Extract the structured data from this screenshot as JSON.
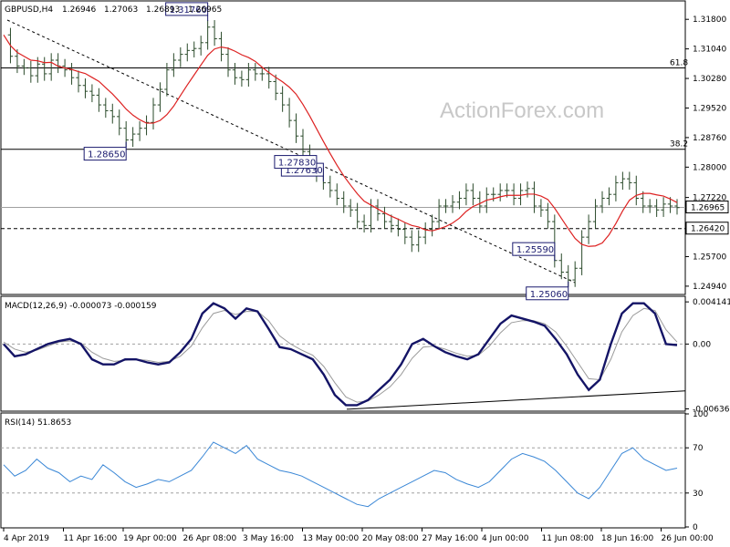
{
  "chart_data": [
    {
      "type": "candlestick",
      "title": "GBPUSD,H4",
      "ohlc": {
        "open": "1.26946",
        "high": "1.27063",
        "low": "1.26893",
        "close": "1.26965"
      },
      "watermark": "ActionForex.com",
      "ylim": [
        1.2475,
        1.3225
      ],
      "y_ticks": [
        "1.31800",
        "1.31040",
        "1.30280",
        "1.29520",
        "1.28760",
        "1.28000",
        "1.27220",
        "1.26420",
        "1.25700",
        "1.24940"
      ],
      "current_price": {
        "value": 1.26965,
        "label": "1.26965"
      },
      "level_line": {
        "value": 1.2642,
        "label": "1.26420"
      },
      "fib_levels": [
        {
          "label": "61.8",
          "value": 1.3055
        },
        {
          "label": "38.2",
          "value": 1.2846
        }
      ],
      "x_labels": [
        "4 Apr 2019",
        "11 Apr 16:00",
        "19 Apr 00:00",
        "26 Apr 08:00",
        "3 May 16:00",
        "13 May 00:00",
        "20 May 08:00",
        "27 May 16:00",
        "4 Jun 00:00",
        "11 Jun 08:00",
        "18 Jun 16:00",
        "26 Jun 00:00"
      ],
      "annotations": [
        {
          "label": "1.31760",
          "value": 1.3176
        },
        {
          "label": "1.28650",
          "value": 1.2865
        },
        {
          "label": "1.25590",
          "value": 1.2559
        },
        {
          "label": "1.27630",
          "value": 1.2763
        },
        {
          "label": "1.25060",
          "value": 1.2506
        },
        {
          "label": "1.27830",
          "value": 1.2783
        }
      ],
      "price_path": [
        1.314,
        1.3085,
        1.306,
        1.3055,
        1.3035,
        1.3065,
        1.304,
        1.3075,
        1.306,
        1.305,
        1.303,
        1.301,
        1.2995,
        1.2985,
        1.296,
        1.2945,
        1.293,
        1.29,
        1.287,
        1.2885,
        1.29,
        1.2915,
        1.296,
        1.3,
        1.305,
        1.3075,
        1.309,
        1.31,
        1.3105,
        1.312,
        1.316,
        1.313,
        1.309,
        1.305,
        1.303,
        1.3025,
        1.305,
        1.304,
        1.304,
        1.302,
        1.299,
        1.296,
        1.292,
        1.288,
        1.284,
        1.28,
        1.278,
        1.276,
        1.274,
        1.272,
        1.27,
        1.269,
        1.266,
        1.265,
        1.27,
        1.268,
        1.266,
        1.265,
        1.264,
        1.262,
        1.26,
        1.262,
        1.264,
        1.266,
        1.27,
        1.27,
        1.271,
        1.272,
        1.274,
        1.272,
        1.27,
        1.273,
        1.273,
        1.274,
        1.274,
        1.272,
        1.274,
        1.2745,
        1.27,
        1.269,
        1.266,
        1.256,
        1.253,
        1.251,
        1.254,
        1.262,
        1.266,
        1.27,
        1.272,
        1.273,
        1.276,
        1.277,
        1.276,
        1.272,
        1.27,
        1.27,
        1.269,
        1.2705,
        1.27,
        1.2696
      ]
    },
    {
      "type": "line",
      "title": "MACD(12,26,9) -0.000073 -0.000159",
      "ylim": [
        -0.0065,
        0.0046
      ],
      "y_ticks": [
        "0.004141",
        "0.00",
        "-0.006365"
      ],
      "series": [
        {
          "values": [
            0.0,
            -0.0012,
            -0.001,
            -0.0005,
            0.0,
            0.0003,
            0.0005,
            0.0,
            -0.0015,
            -0.002,
            -0.002,
            -0.0015,
            -0.0015,
            -0.0018,
            -0.002,
            -0.0018,
            -0.0008,
            0.0005,
            0.003,
            0.004,
            0.0035,
            0.0025,
            0.0035,
            0.0032,
            0.0015,
            -0.0003,
            -0.0005,
            -0.001,
            -0.0015,
            -0.003,
            -0.005,
            -0.006,
            -0.006,
            -0.0055,
            -0.0045,
            -0.0035,
            -0.002,
            0.0,
            0.0005,
            -0.0002,
            -0.0008,
            -0.0012,
            -0.0015,
            -0.001,
            0.0005,
            0.002,
            0.0028,
            0.0025,
            0.0022,
            0.0018,
            0.0005,
            -0.001,
            -0.003,
            -0.0045,
            -0.0035,
            0.0,
            0.003,
            0.004,
            0.004,
            0.003,
            0.0,
            -0.0001
          ]
        },
        {
          "values": [
            0.0002,
            -0.0005,
            -0.0008,
            -0.0006,
            -0.0002,
            0.0002,
            0.0003,
            0.0001,
            -0.0008,
            -0.0014,
            -0.0017,
            -0.0016,
            -0.0015,
            -0.0016,
            -0.0018,
            -0.0017,
            -0.0012,
            -0.0002,
            0.0016,
            0.003,
            0.0033,
            0.0029,
            0.0032,
            0.0032,
            0.0023,
            0.0008,
            0.0,
            -0.0006,
            -0.0011,
            -0.0022,
            -0.0038,
            -0.0052,
            -0.0057,
            -0.0056,
            -0.005,
            -0.0042,
            -0.003,
            -0.0014,
            -0.0003,
            -0.0002,
            -0.0005,
            -0.0009,
            -0.0012,
            -0.0011,
            -0.0002,
            0.0011,
            0.0021,
            0.0023,
            0.0023,
            0.002,
            0.0012,
            -0.0002,
            -0.0018,
            -0.0034,
            -0.0035,
            -0.0015,
            0.0012,
            0.0028,
            0.0035,
            0.0033,
            0.0014,
            0.0002
          ]
        }
      ],
      "trendline": [
        -0.0064,
        -0.0046
      ]
    },
    {
      "type": "line",
      "title": "RSI(14) 51.8653",
      "ylim": [
        0,
        100
      ],
      "y_ticks": [
        "100",
        "70",
        "30",
        "0"
      ],
      "series": [
        {
          "values": [
            55,
            45,
            50,
            60,
            52,
            48,
            40,
            45,
            42,
            55,
            48,
            40,
            35,
            38,
            42,
            40,
            45,
            50,
            62,
            75,
            70,
            65,
            72,
            60,
            55,
            50,
            48,
            45,
            40,
            35,
            30,
            25,
            20,
            18,
            25,
            30,
            35,
            40,
            45,
            50,
            48,
            42,
            38,
            35,
            40,
            50,
            60,
            65,
            62,
            58,
            50,
            40,
            30,
            25,
            35,
            50,
            65,
            70,
            60,
            55,
            50,
            52
          ]
        }
      ]
    }
  ]
}
